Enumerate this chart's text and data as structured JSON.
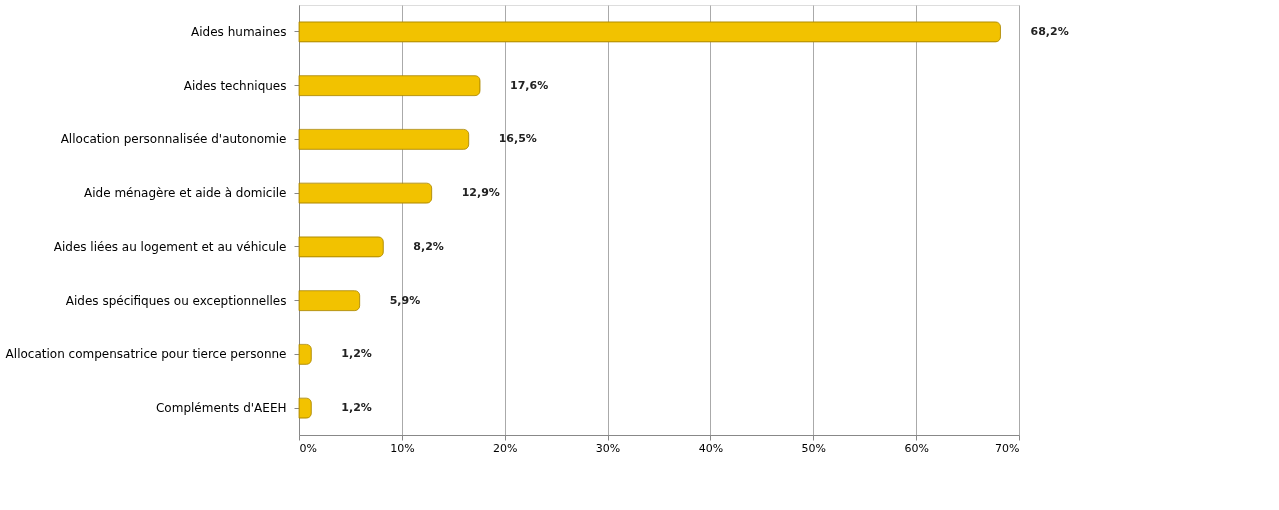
{
  "chart_data": {
    "type": "bar",
    "orientation": "horizontal",
    "categories": [
      "Aides humaines",
      "Aides techniques",
      "Allocation personnalisée d'autonomie",
      "Aide ménagère et aide à domicile",
      "Aides liées au logement et au véhicule",
      "Aides spécifiques ou exceptionnelles",
      "Allocation compensatrice pour tierce personne",
      "Compléments d'AEEH"
    ],
    "values": [
      68.2,
      17.6,
      16.5,
      12.9,
      8.2,
      5.9,
      1.2,
      1.2
    ],
    "value_labels": [
      "68,2%",
      "17,6%",
      "16,5%",
      "12,9%",
      "8,2%",
      "5,9%",
      "1,2%",
      "1,2%"
    ],
    "color": "#f2c200",
    "xlim": [
      0,
      70
    ],
    "xticks": [
      {
        "value": 0,
        "label": "0%"
      },
      {
        "value": 10,
        "label": "10%"
      },
      {
        "value": 20,
        "label": "20%"
      },
      {
        "value": 30,
        "label": "30%"
      },
      {
        "value": 40,
        "label": "40%"
      },
      {
        "value": 50,
        "label": "50%"
      },
      {
        "value": 60,
        "label": "60%"
      },
      {
        "value": 70,
        "label": "70%"
      }
    ],
    "grid": "x"
  }
}
